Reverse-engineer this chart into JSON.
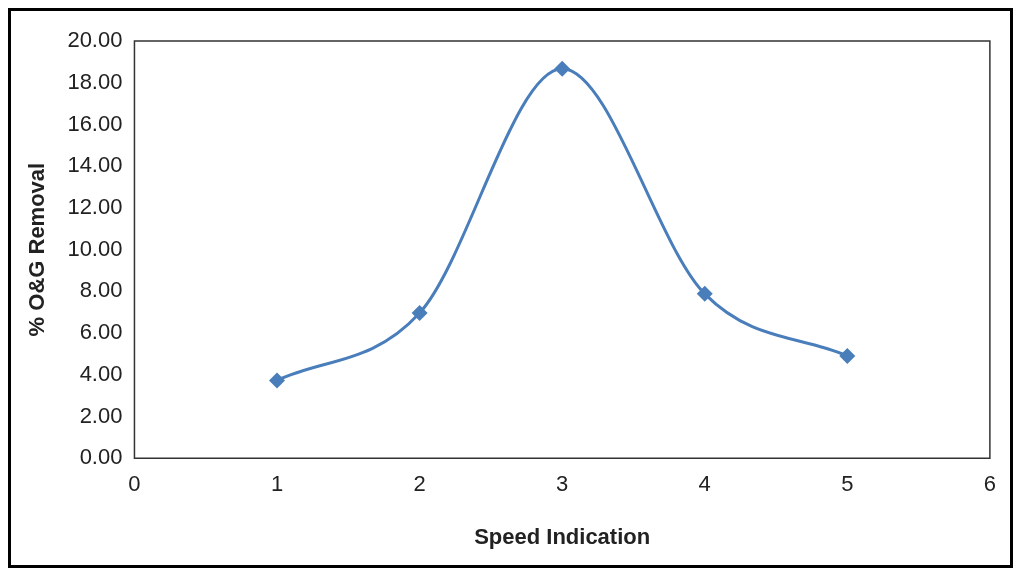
{
  "chart_data": {
    "type": "line",
    "xlabel": "Speed Indication",
    "ylabel": "% O&G Removal",
    "x": [
      1,
      2,
      3,
      4,
      5
    ],
    "series": [
      {
        "color": "#4a7ebb",
        "values": [
          3.73,
          6.96,
          18.67,
          7.88,
          4.9
        ]
      }
    ],
    "xlim": [
      0,
      6
    ],
    "xticks": [
      0,
      1,
      2,
      3,
      4,
      5,
      6
    ],
    "ylim": [
      0,
      20
    ],
    "yticks": [
      {
        "value": 0,
        "label": "0.00"
      },
      {
        "value": 2,
        "label": "2.00"
      },
      {
        "value": 4,
        "label": "4.00"
      },
      {
        "value": 6,
        "label": "6.00"
      },
      {
        "value": 8,
        "label": "8.00"
      },
      {
        "value": 10,
        "label": "10.00"
      },
      {
        "value": 12,
        "label": "12.00"
      },
      {
        "value": 14,
        "label": "14.00"
      },
      {
        "value": 16,
        "label": "16.00"
      },
      {
        "value": 18,
        "label": "18.00"
      },
      {
        "value": 20,
        "label": "20.00"
      }
    ],
    "grid": false,
    "legend": false,
    "marker": "diamond",
    "line_style": "solid"
  }
}
